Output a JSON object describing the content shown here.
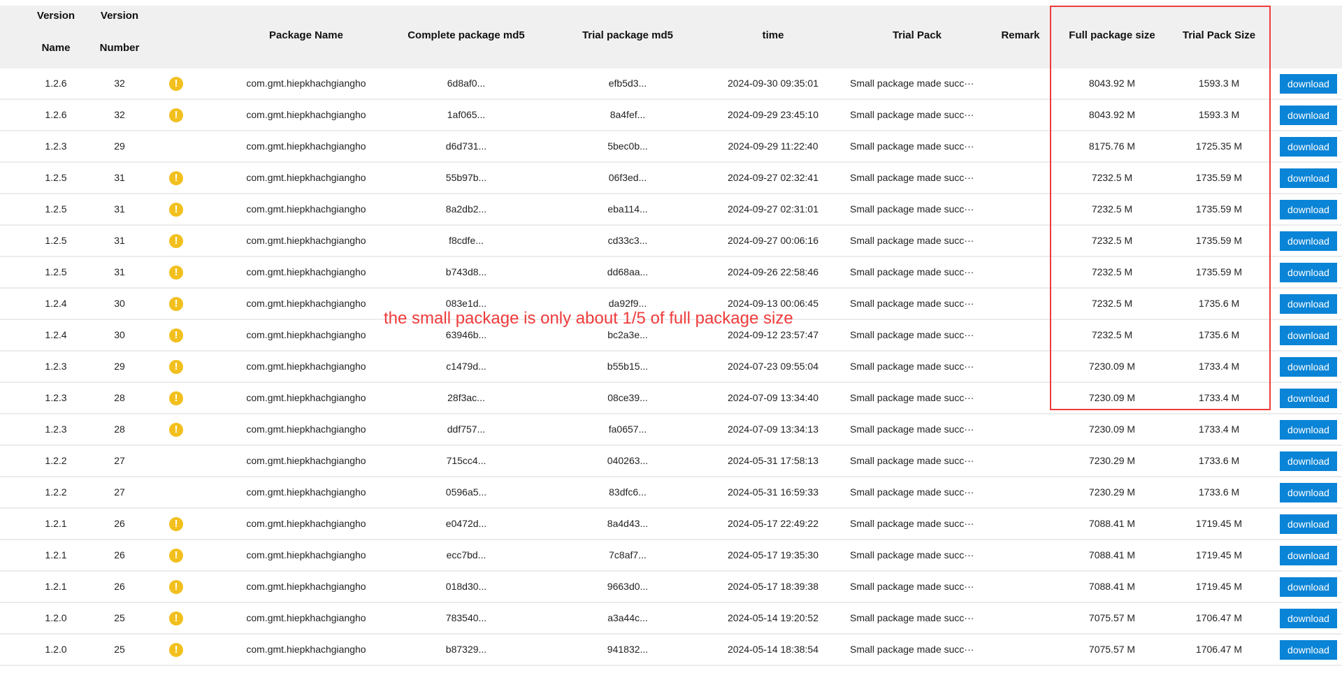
{
  "headers": {
    "version_name": [
      "Version",
      "Name"
    ],
    "version_number": [
      "Version",
      "Number"
    ],
    "package_name": "Package Name",
    "complete_md5": "Complete package md5",
    "trial_md5": "Trial package md5",
    "time": "time",
    "trial_pack": "Trial Pack",
    "remark": "Remark",
    "full_size": "Full package size",
    "trial_size": "Trial Pack Size"
  },
  "warning_icon": "!",
  "colors": {
    "accent": "#0a84d6",
    "warning": "#f2c01e",
    "annotation": "#ef3b3b"
  },
  "annotation": "the small package is only about 1/5 of full package size",
  "rows": [
    {
      "vname": "1.2.6",
      "vnum": "32",
      "warn": true,
      "pkg": "com.gmt.hiepkhachgiangho",
      "md5": "6d8af0...",
      "tmd5": "efb5d3...",
      "time": "2024-09-30 09:35:01",
      "trial": "Small package made succ···",
      "remark": "",
      "full": "8043.92 M",
      "tsize": "1593.3 M",
      "btn": "download"
    },
    {
      "vname": "1.2.6",
      "vnum": "32",
      "warn": true,
      "pkg": "com.gmt.hiepkhachgiangho",
      "md5": "1af065...",
      "tmd5": "8a4fef...",
      "time": "2024-09-29 23:45:10",
      "trial": "Small package made succ···",
      "remark": "",
      "full": "8043.92 M",
      "tsize": "1593.3 M",
      "btn": "download"
    },
    {
      "vname": "1.2.3",
      "vnum": "29",
      "warn": false,
      "pkg": "com.gmt.hiepkhachgiangho",
      "md5": "d6d731...",
      "tmd5": "5bec0b...",
      "time": "2024-09-29 11:22:40",
      "trial": "Small package made succ···",
      "remark": "",
      "full": "8175.76 M",
      "tsize": "1725.35 M",
      "btn": "download"
    },
    {
      "vname": "1.2.5",
      "vnum": "31",
      "warn": true,
      "pkg": "com.gmt.hiepkhachgiangho",
      "md5": "55b97b...",
      "tmd5": "06f3ed...",
      "time": "2024-09-27 02:32:41",
      "trial": "Small package made succ···",
      "remark": "",
      "full": "7232.5 M",
      "tsize": "1735.59 M",
      "btn": "download"
    },
    {
      "vname": "1.2.5",
      "vnum": "31",
      "warn": true,
      "pkg": "com.gmt.hiepkhachgiangho",
      "md5": "8a2db2...",
      "tmd5": "eba114...",
      "time": "2024-09-27 02:31:01",
      "trial": "Small package made succ···",
      "remark": "",
      "full": "7232.5 M",
      "tsize": "1735.59 M",
      "btn": "download"
    },
    {
      "vname": "1.2.5",
      "vnum": "31",
      "warn": true,
      "pkg": "com.gmt.hiepkhachgiangho",
      "md5": "f8cdfe...",
      "tmd5": "cd33c3...",
      "time": "2024-09-27 00:06:16",
      "trial": "Small package made succ···",
      "remark": "",
      "full": "7232.5 M",
      "tsize": "1735.59 M",
      "btn": "download"
    },
    {
      "vname": "1.2.5",
      "vnum": "31",
      "warn": true,
      "pkg": "com.gmt.hiepkhachgiangho",
      "md5": "b743d8...",
      "tmd5": "dd68aa...",
      "time": "2024-09-26 22:58:46",
      "trial": "Small package made succ···",
      "remark": "",
      "full": "7232.5 M",
      "tsize": "1735.59 M",
      "btn": "download"
    },
    {
      "vname": "1.2.4",
      "vnum": "30",
      "warn": true,
      "pkg": "com.gmt.hiepkhachgiangho",
      "md5": "083e1d...",
      "tmd5": "da92f9...",
      "time": "2024-09-13 00:06:45",
      "trial": "Small package made succ···",
      "remark": "",
      "full": "7232.5 M",
      "tsize": "1735.6 M",
      "btn": "download"
    },
    {
      "vname": "1.2.4",
      "vnum": "30",
      "warn": true,
      "pkg": "com.gmt.hiepkhachgiangho",
      "md5": "63946b...",
      "tmd5": "bc2a3e...",
      "time": "2024-09-12 23:57:47",
      "trial": "Small package made succ···",
      "remark": "",
      "full": "7232.5 M",
      "tsize": "1735.6 M",
      "btn": "download"
    },
    {
      "vname": "1.2.3",
      "vnum": "29",
      "warn": true,
      "pkg": "com.gmt.hiepkhachgiangho",
      "md5": "c1479d...",
      "tmd5": "b55b15...",
      "time": "2024-07-23 09:55:04",
      "trial": "Small package made succ···",
      "remark": "",
      "full": "7230.09 M",
      "tsize": "1733.4 M",
      "btn": "download"
    },
    {
      "vname": "1.2.3",
      "vnum": "28",
      "warn": true,
      "pkg": "com.gmt.hiepkhachgiangho",
      "md5": "28f3ac...",
      "tmd5": "08ce39...",
      "time": "2024-07-09 13:34:40",
      "trial": "Small package made succ···",
      "remark": "",
      "full": "7230.09 M",
      "tsize": "1733.4 M",
      "btn": "download"
    },
    {
      "vname": "1.2.3",
      "vnum": "28",
      "warn": true,
      "pkg": "com.gmt.hiepkhachgiangho",
      "md5": "ddf757...",
      "tmd5": "fa0657...",
      "time": "2024-07-09 13:34:13",
      "trial": "Small package made succ···",
      "remark": "",
      "full": "7230.09 M",
      "tsize": "1733.4 M",
      "btn": "download"
    },
    {
      "vname": "1.2.2",
      "vnum": "27",
      "warn": false,
      "pkg": "com.gmt.hiepkhachgiangho",
      "md5": "715cc4...",
      "tmd5": "040263...",
      "time": "2024-05-31 17:58:13",
      "trial": "Small package made succ···",
      "remark": "",
      "full": "7230.29 M",
      "tsize": "1733.6 M",
      "btn": "download"
    },
    {
      "vname": "1.2.2",
      "vnum": "27",
      "warn": false,
      "pkg": "com.gmt.hiepkhachgiangho",
      "md5": "0596a5...",
      "tmd5": "83dfc6...",
      "time": "2024-05-31 16:59:33",
      "trial": "Small package made succ···",
      "remark": "",
      "full": "7230.29 M",
      "tsize": "1733.6 M",
      "btn": "download"
    },
    {
      "vname": "1.2.1",
      "vnum": "26",
      "warn": true,
      "pkg": "com.gmt.hiepkhachgiangho",
      "md5": "e0472d...",
      "tmd5": "8a4d43...",
      "time": "2024-05-17 22:49:22",
      "trial": "Small package made succ···",
      "remark": "",
      "full": "7088.41 M",
      "tsize": "1719.45 M",
      "btn": "download"
    },
    {
      "vname": "1.2.1",
      "vnum": "26",
      "warn": true,
      "pkg": "com.gmt.hiepkhachgiangho",
      "md5": "ecc7bd...",
      "tmd5": "7c8af7...",
      "time": "2024-05-17 19:35:30",
      "trial": "Small package made succ···",
      "remark": "",
      "full": "7088.41 M",
      "tsize": "1719.45 M",
      "btn": "download"
    },
    {
      "vname": "1.2.1",
      "vnum": "26",
      "warn": true,
      "pkg": "com.gmt.hiepkhachgiangho",
      "md5": "018d30...",
      "tmd5": "9663d0...",
      "time": "2024-05-17 18:39:38",
      "trial": "Small package made succ···",
      "remark": "",
      "full": "7088.41 M",
      "tsize": "1719.45 M",
      "btn": "download"
    },
    {
      "vname": "1.2.0",
      "vnum": "25",
      "warn": true,
      "pkg": "com.gmt.hiepkhachgiangho",
      "md5": "783540...",
      "tmd5": "a3a44c...",
      "time": "2024-05-14 19:20:52",
      "trial": "Small package made succ···",
      "remark": "",
      "full": "7075.57 M",
      "tsize": "1706.47 M",
      "btn": "download"
    },
    {
      "vname": "1.2.0",
      "vnum": "25",
      "warn": true,
      "pkg": "com.gmt.hiepkhachgiangho",
      "md5": "b87329...",
      "tmd5": "941832...",
      "time": "2024-05-14 18:38:54",
      "trial": "Small package made succ···",
      "remark": "",
      "full": "7075.57 M",
      "tsize": "1706.47 M",
      "btn": "download"
    }
  ]
}
